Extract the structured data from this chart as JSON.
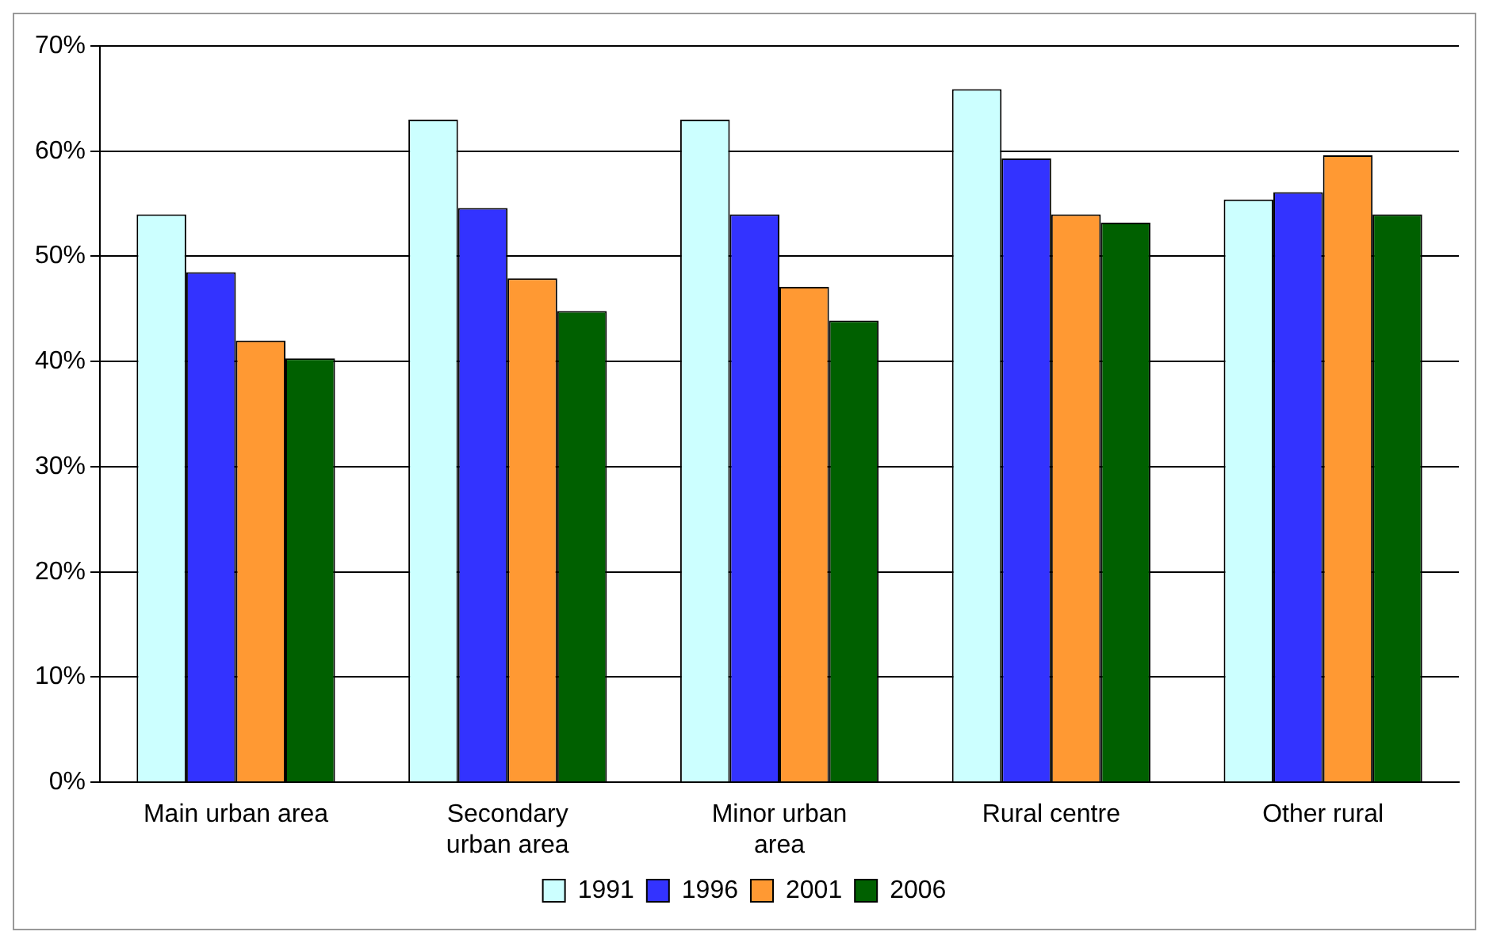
{
  "chart_data": {
    "type": "bar",
    "categories": [
      "Main urban area",
      "Secondary urban area",
      "Minor urban area",
      "Rural centre",
      "Other rural"
    ],
    "series": [
      {
        "name": "1991",
        "color": "#ccffff",
        "values": [
          54.0,
          63.0,
          63.0,
          65.9,
          55.4
        ]
      },
      {
        "name": "1996",
        "color": "#3333ff",
        "values": [
          48.5,
          54.6,
          54.0,
          59.3,
          56.1
        ]
      },
      {
        "name": "2001",
        "color": "#ff9933",
        "values": [
          42.0,
          47.9,
          47.1,
          54.0,
          59.6
        ]
      },
      {
        "name": "2006",
        "color": "#006000",
        "values": [
          40.3,
          44.8,
          43.9,
          53.2,
          54.0
        ]
      }
    ],
    "ylim": [
      0,
      70
    ],
    "yticks": [
      {
        "value": 0,
        "label": "0%"
      },
      {
        "value": 10,
        "label": "10%"
      },
      {
        "value": 20,
        "label": "20%"
      },
      {
        "value": 30,
        "label": "30%"
      },
      {
        "value": 40,
        "label": "40%"
      },
      {
        "value": 50,
        "label": "50%"
      },
      {
        "value": 60,
        "label": "60%"
      },
      {
        "value": 70,
        "label": "70%"
      }
    ],
    "grid": "y",
    "legend": "bottom"
  }
}
